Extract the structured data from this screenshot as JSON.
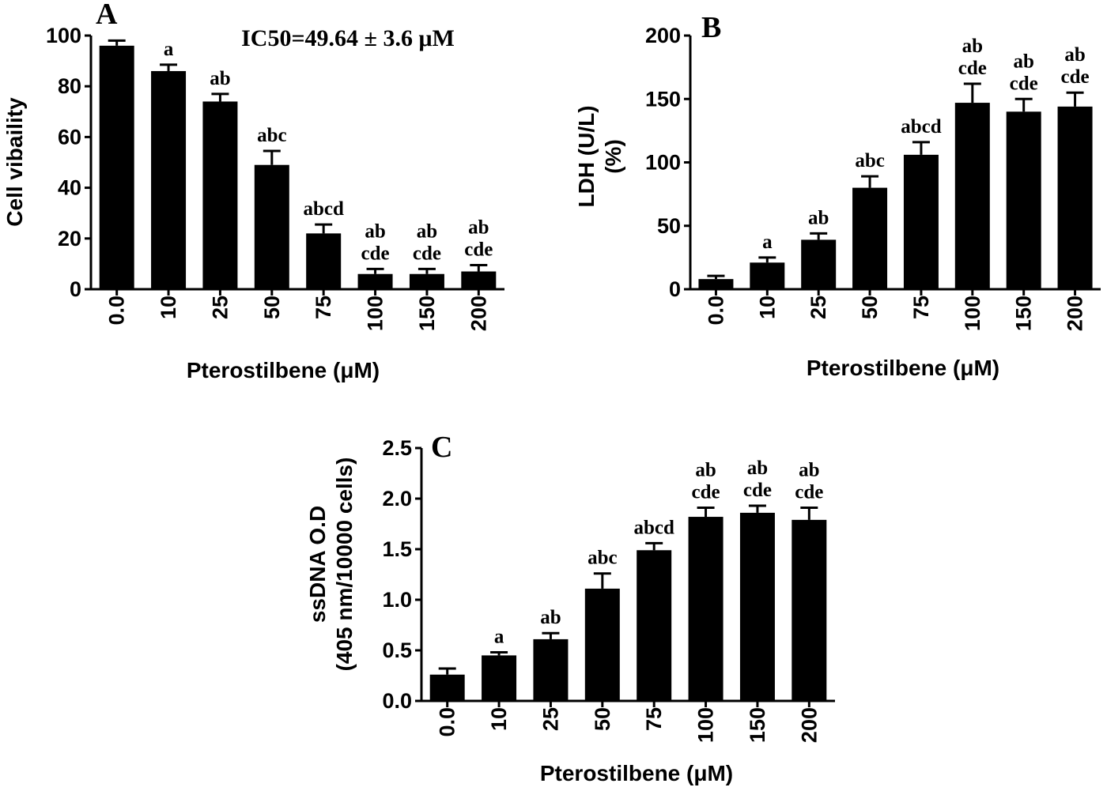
{
  "chart_data": [
    {
      "type": "bar",
      "panel_label": "A",
      "annotation": "IC50=49.64 ± 3.6 μM",
      "xlabel": "Pterostilbene (μM)",
      "ylabel": "Cell vibaility",
      "ylabel_line2": "",
      "ylim": [
        0,
        100
      ],
      "yticks": [
        "0",
        "20",
        "40",
        "60",
        "80",
        "100"
      ],
      "ytick_values": [
        0,
        20,
        40,
        60,
        80,
        100
      ],
      "categories": [
        "0.0",
        "10",
        "25",
        "50",
        "75",
        "100",
        "150",
        "200"
      ],
      "values": [
        96,
        86,
        74,
        49,
        22,
        6,
        6,
        7
      ],
      "errors": [
        2,
        2.5,
        3,
        5.5,
        3.5,
        2,
        2,
        2.5
      ],
      "significance": [
        [],
        [
          "a"
        ],
        [
          "ab"
        ],
        [
          "abc"
        ],
        [
          "abcd"
        ],
        [
          "ab",
          "cde"
        ],
        [
          "ab",
          "cde"
        ],
        [
          "ab",
          "cde"
        ]
      ],
      "bar_color": "#000000"
    },
    {
      "type": "bar",
      "panel_label": "B",
      "annotation": "",
      "xlabel": "Pterostilbene (μM)",
      "ylabel": "LDH (U/L)",
      "ylabel_line2": "(%)",
      "ylim": [
        0,
        200
      ],
      "yticks": [
        "0",
        "50",
        "100",
        "150",
        "200"
      ],
      "ytick_values": [
        0,
        50,
        100,
        150,
        200
      ],
      "categories": [
        "0.0",
        "10",
        "25",
        "50",
        "75",
        "100",
        "150",
        "200"
      ],
      "values": [
        8,
        21,
        39,
        80,
        106,
        147,
        140,
        144
      ],
      "errors": [
        2.5,
        4,
        5,
        9,
        10,
        15,
        10,
        11
      ],
      "significance": [
        [],
        [
          "a"
        ],
        [
          "ab"
        ],
        [
          "abc"
        ],
        [
          "abcd"
        ],
        [
          "ab",
          "cde"
        ],
        [
          "ab",
          "cde"
        ],
        [
          "ab",
          "cde"
        ]
      ],
      "bar_color": "#000000"
    },
    {
      "type": "bar",
      "panel_label": "C",
      "annotation": "",
      "xlabel": "Pterostilbene (μM)",
      "ylabel": "ssDNA O.D",
      "ylabel_line2": "(405 nm/10000 cells)",
      "ylim": [
        0,
        2.5
      ],
      "yticks": [
        "0.0",
        "0.5",
        "1.0",
        "1.5",
        "2.0",
        "2.5"
      ],
      "ytick_values": [
        0,
        0.5,
        1.0,
        1.5,
        2.0,
        2.5
      ],
      "categories": [
        "0.0",
        "10",
        "25",
        "50",
        "75",
        "100",
        "150",
        "200"
      ],
      "values": [
        0.26,
        0.45,
        0.61,
        1.11,
        1.49,
        1.82,
        1.86,
        1.79
      ],
      "errors": [
        0.06,
        0.03,
        0.06,
        0.15,
        0.07,
        0.09,
        0.07,
        0.12
      ],
      "significance": [
        [],
        [
          "a"
        ],
        [
          "ab"
        ],
        [
          "abc"
        ],
        [
          "abcd"
        ],
        [
          "ab",
          "cde"
        ],
        [
          "ab",
          "cde"
        ],
        [
          "ab",
          "cde"
        ]
      ],
      "bar_color": "#000000"
    }
  ]
}
